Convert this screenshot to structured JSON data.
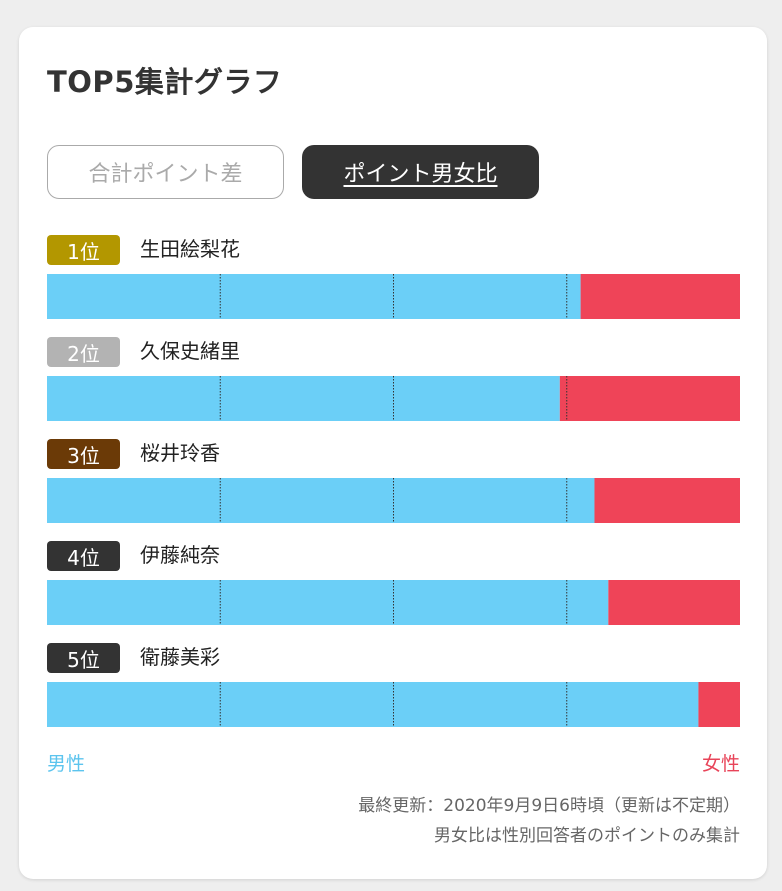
{
  "title": "TOP5集計グラフ",
  "tabs": [
    {
      "label": "合計ポイント差",
      "active": false
    },
    {
      "label": "ポイント男女比",
      "active": true
    }
  ],
  "chart_data": {
    "type": "bar",
    "stacked": true,
    "orientation": "horizontal",
    "xlim": [
      0,
      100
    ],
    "gridlines": [
      25,
      50,
      75
    ],
    "categories": [
      "1位 生田絵梨花",
      "2位 久保史緒里",
      "3位 桜井玲香",
      "4位 伊藤純奈",
      "5位 衛藤美彩"
    ],
    "series": [
      {
        "name": "男性",
        "color": "#6bcff7",
        "values": [
          77,
          74,
          79,
          81,
          94
        ]
      },
      {
        "name": "女性",
        "color": "#ef4458",
        "values": [
          23,
          26,
          21,
          19,
          6
        ]
      }
    ]
  },
  "ranks": [
    {
      "badge": "1位",
      "name": "生田絵梨花",
      "badge_color": "#b39700"
    },
    {
      "badge": "2位",
      "name": "久保史緒里",
      "badge_color": "#b3b3b3"
    },
    {
      "badge": "3位",
      "name": "桜井玲香",
      "badge_color": "#6b3a07"
    },
    {
      "badge": "4位",
      "name": "伊藤純奈",
      "badge_color": "#333333"
    },
    {
      "badge": "5位",
      "name": "衛藤美彩",
      "badge_color": "#333333"
    }
  ],
  "legend": {
    "male": "男性",
    "female": "女性"
  },
  "notes": {
    "updated": "最終更新：2020年9月9日6時頃（更新は不定期）",
    "method": "男女比は性別回答者のポイントのみ集計"
  }
}
